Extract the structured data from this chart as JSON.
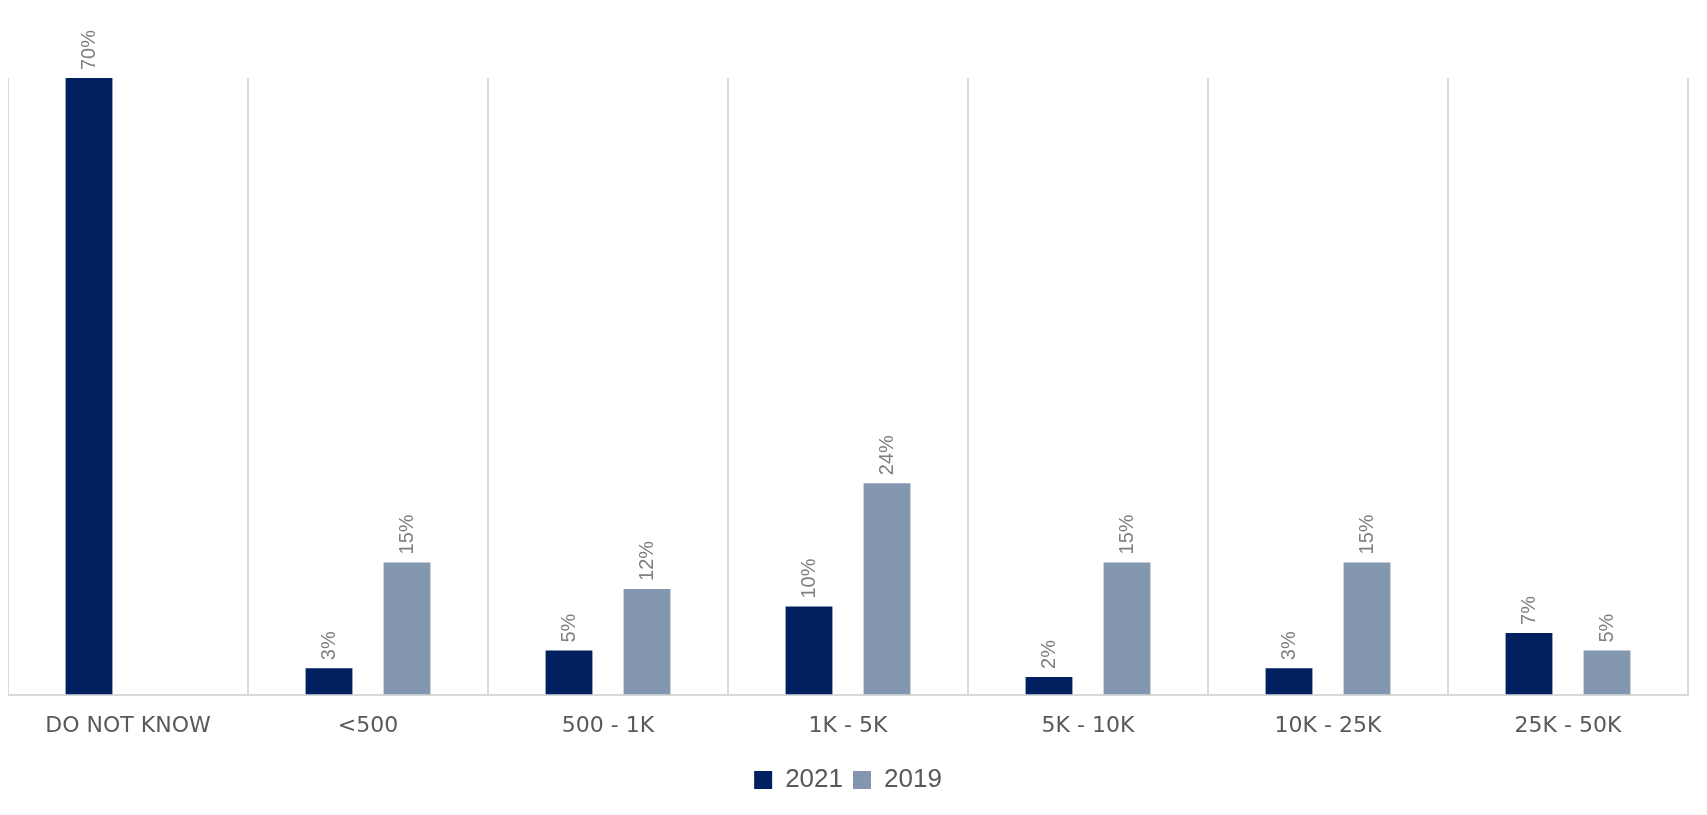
{
  "chart_data": {
    "type": "bar",
    "categories": [
      "DO NOT KNOW",
      "<500",
      "500 - 1K",
      "1K - 5K",
      "5K - 10K",
      "10K - 25K",
      "25K - 50K"
    ],
    "series": [
      {
        "name": "2021",
        "color": "#002060",
        "values": [
          70,
          3,
          5,
          10,
          2,
          3,
          7
        ],
        "value_labels": [
          "70%",
          "3%",
          "5%",
          "10%",
          "2%",
          "3%",
          "7%"
        ]
      },
      {
        "name": "2019",
        "color": "#8497b0",
        "values": [
          null,
          15,
          12,
          24,
          15,
          15,
          5
        ],
        "value_labels": [
          null,
          "15%",
          "12%",
          "24%",
          "15%",
          "15%",
          "5%"
        ]
      }
    ],
    "grid": "x",
    "legend": "bottom"
  }
}
